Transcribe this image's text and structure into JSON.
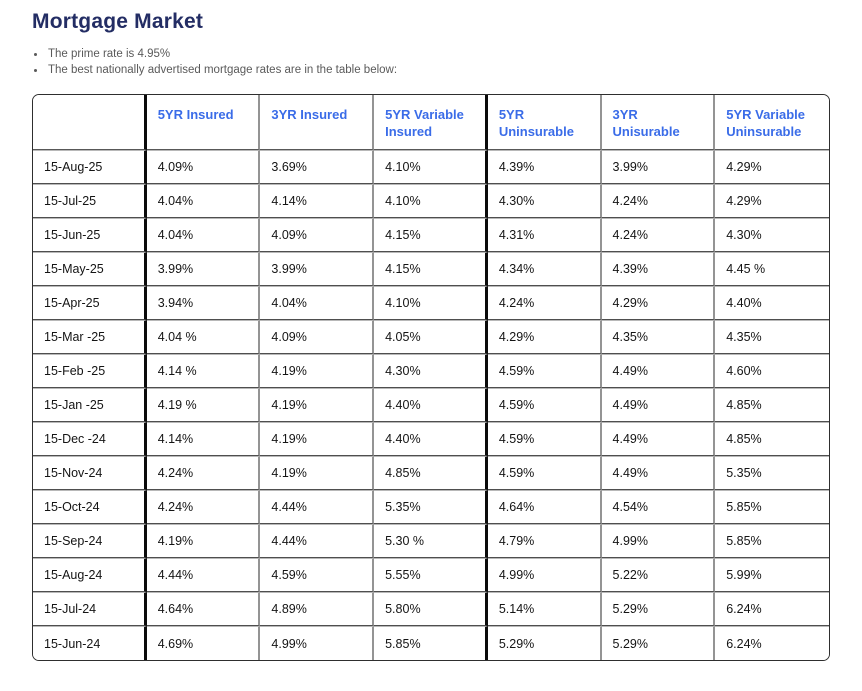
{
  "page": {
    "title": "Mortgage Market"
  },
  "bullets": [
    "The prime rate is 4.95%",
    "The best nationally advertised mortgage rates are in the table below:"
  ],
  "colors": {
    "title_navy": "#232d64",
    "header_blue": "#3a6ce8",
    "thick_separator": "#0a0a0a",
    "grid_gray": "#949494"
  },
  "table": {
    "columns": [
      "",
      "5YR Insured",
      "3YR Insured",
      "5YR Variable Insured",
      "5YR Uninsurable",
      "3YR Unisurable",
      "5YR Variable Uninsurable"
    ],
    "rows": [
      {
        "date": "15-Aug-25",
        "values": [
          "4.09%",
          "3.69%",
          "4.10%",
          "4.39%",
          "3.99%",
          "4.29%"
        ]
      },
      {
        "date": "15-Jul-25",
        "values": [
          "4.04%",
          "4.14%",
          "4.10%",
          "4.30%",
          "4.24%",
          "4.29%"
        ]
      },
      {
        "date": "15-Jun-25",
        "values": [
          "4.04%",
          "4.09%",
          "4.15%",
          "4.31%",
          "4.24%",
          "4.30%"
        ]
      },
      {
        "date": "15-May-25",
        "values": [
          "3.99%",
          "3.99%",
          "4.15%",
          "4.34%",
          "4.39%",
          "4.45 %"
        ]
      },
      {
        "date": "15-Apr-25",
        "values": [
          "3.94%",
          "4.04%",
          "4.10%",
          "4.24%",
          "4.29%",
          "4.40%"
        ]
      },
      {
        "date": "15-Mar -25",
        "values": [
          "4.04 %",
          "4.09%",
          "4.05%",
          "4.29%",
          "4.35%",
          "4.35%"
        ]
      },
      {
        "date": "15-Feb -25",
        "values": [
          "4.14 %",
          "4.19%",
          "4.30%",
          "4.59%",
          "4.49%",
          "4.60%"
        ]
      },
      {
        "date": "15-Jan -25",
        "values": [
          "4.19 %",
          "4.19%",
          "4.40%",
          "4.59%",
          "4.49%",
          "4.85%"
        ]
      },
      {
        "date": "15-Dec -24",
        "values": [
          "4.14%",
          "4.19%",
          "4.40%",
          "4.59%",
          "4.49%",
          "4.85%"
        ]
      },
      {
        "date": "15-Nov-24",
        "values": [
          "4.24%",
          "4.19%",
          "4.85%",
          "4.59%",
          "4.49%",
          "5.35%"
        ]
      },
      {
        "date": "15-Oct-24",
        "values": [
          "4.24%",
          "4.44%",
          "5.35%",
          "4.64%",
          "4.54%",
          "5.85%"
        ]
      },
      {
        "date": "15-Sep-24",
        "values": [
          "4.19%",
          "4.44%",
          "5.30 %",
          "4.79%",
          "4.99%",
          "5.85%"
        ]
      },
      {
        "date": "15-Aug-24",
        "values": [
          "4.44%",
          "4.59%",
          "5.55%",
          "4.99%",
          "5.22%",
          "5.99%"
        ]
      },
      {
        "date": "15-Jul-24",
        "values": [
          "4.64%",
          "4.89%",
          "5.80%",
          "5.14%",
          "5.29%",
          "6.24%"
        ]
      },
      {
        "date": "15-Jun-24",
        "values": [
          "4.69%",
          "4.99%",
          "5.85%",
          "5.29%",
          "5.29%",
          "6.24%"
        ]
      }
    ]
  }
}
